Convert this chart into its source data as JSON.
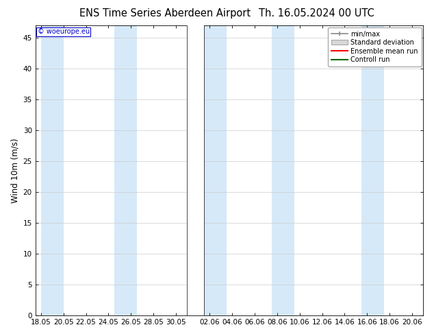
{
  "title_left": "ENS Time Series Aberdeen Airport",
  "title_right": "Th. 16.05.2024 00 UTC",
  "ylabel": "Wind 10m (m/s)",
  "ylim": [
    0,
    47
  ],
  "yticks": [
    0,
    5,
    10,
    15,
    20,
    25,
    30,
    35,
    40,
    45
  ],
  "copyright_text": "© woeurope.eu",
  "legend_entries": [
    "min/max",
    "Standard deviation",
    "Ensemble mean run",
    "Controll run"
  ],
  "bg_color": "#ffffff",
  "plot_bg_color": "#ffffff",
  "band_color": "#d6e9f8",
  "title_fontsize": 10.5,
  "axis_fontsize": 8.5,
  "tick_fontsize": 7.5,
  "x_tick_labels": [
    "18.05",
    "20.05",
    "22.05",
    "24.05",
    "26.05",
    "28.05",
    "30.05",
    "02.06",
    "04.06",
    "06.06",
    "08.06",
    "10.06",
    "12.06",
    "14.06",
    "16.06",
    "18.06",
    "20.06"
  ],
  "x_tick_days": [
    0,
    2,
    4,
    6,
    8,
    10,
    12,
    15,
    17,
    19,
    21,
    23,
    25,
    27,
    29,
    31,
    33
  ],
  "xlim_start": -0.5,
  "xlim_end": 34.0,
  "gap_start": 13.0,
  "gap_end": 14.5,
  "bands": [
    [
      0.0,
      2.0
    ],
    [
      6.5,
      8.5
    ],
    [
      14.5,
      16.5
    ],
    [
      20.5,
      22.5
    ],
    [
      28.5,
      30.5
    ]
  ]
}
